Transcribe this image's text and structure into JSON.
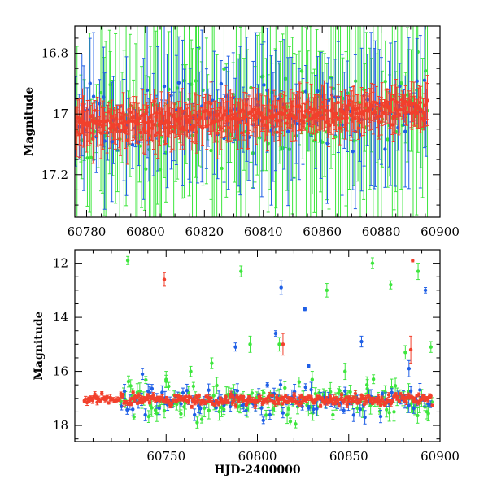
{
  "figure": {
    "xlabel": "HJD-2400000",
    "colors": {
      "green": "#3ee63e",
      "blue": "#1f5fe6",
      "red": "#f2402c",
      "frame": "#000000"
    }
  },
  "chart_data": [
    {
      "type": "scatter",
      "panel": "top",
      "title": "",
      "xlabel": "",
      "ylabel": "Magnitude",
      "xlim": [
        60776,
        60900
      ],
      "ylim": [
        17.34,
        16.71
      ],
      "y_inverted": true,
      "x_ticks": [
        60780,
        60800,
        60820,
        60840,
        60860,
        60880,
        60900
      ],
      "x_tick_labels": [
        "60780",
        "60800",
        "60820",
        "60840",
        "60860",
        "60880",
        "60900"
      ],
      "y_ticks": [
        16.8,
        17.0,
        17.2
      ],
      "y_tick_labels": [
        "16.8",
        "17",
        "17.2"
      ],
      "series": [
        {
          "color": "#3ee63e",
          "x_range": [
            60776,
            60896
          ],
          "base_mag": 17.04,
          "trend": -0.06,
          "scatter": 0.07,
          "typical_error": 0.25
        },
        {
          "color": "#1f5fe6",
          "x_range": [
            60776,
            60896
          ],
          "base_mag": 17.04,
          "trend": -0.06,
          "scatter": 0.05,
          "typical_error": 0.15
        },
        {
          "color": "#f2402c",
          "x_range": [
            60776,
            60896
          ],
          "base_mag": 17.04,
          "trend": -0.06,
          "scatter": 0.02,
          "typical_error": 0.05
        }
      ]
    },
    {
      "type": "scatter",
      "panel": "bottom",
      "title": "",
      "xlabel": "HJD-2400000",
      "ylabel": "Magnitude",
      "xlim": [
        60700,
        60900
      ],
      "ylim": [
        18.6,
        11.5
      ],
      "y_inverted": true,
      "x_ticks": [
        60750,
        60800,
        60850,
        60900
      ],
      "x_tick_labels": [
        "60750",
        "60800",
        "60850",
        "60900"
      ],
      "y_ticks": [
        12,
        14,
        16,
        18
      ],
      "y_tick_labels": [
        "12",
        "14",
        "16",
        "18"
      ],
      "series": [
        {
          "color": "#3ee63e",
          "x_range": [
            60725,
            60896
          ],
          "base_mag": 17.1,
          "outliers": [
            [
              60729,
              11.9,
              0.15
            ],
            [
              60791,
              12.3,
              0.2
            ],
            [
              60838,
              13.0,
              0.25
            ],
            [
              60863,
              12.0,
              0.2
            ],
            [
              60873,
              12.8,
              0.15
            ],
            [
              60888,
              12.3,
              0.3
            ],
            [
              60796,
              15.0,
              0.3
            ],
            [
              60775,
              15.7,
              0.2
            ],
            [
              60812,
              15.0,
              0.25
            ],
            [
              60848,
              16.0,
              0.3
            ],
            [
              60881,
              15.3,
              0.25
            ],
            [
              60895,
              15.1,
              0.2
            ],
            [
              60750,
              16.3,
              0.3
            ],
            [
              60830,
              16.3,
              0.3
            ],
            [
              60860,
              16.5,
              0.3
            ]
          ]
        },
        {
          "color": "#1f5fe6",
          "x_range": [
            60725,
            60896
          ],
          "base_mag": 17.1,
          "outliers": [
            [
              60813,
              12.9,
              0.25
            ],
            [
              60826,
              13.7,
              0.05
            ],
            [
              60892,
              13.0,
              0.1
            ],
            [
              60810,
              14.6,
              0.1
            ],
            [
              60788,
              15.1,
              0.15
            ],
            [
              60857,
              14.9,
              0.2
            ],
            [
              60737,
              16.1,
              0.2
            ],
            [
              60883,
              15.9,
              0.3
            ],
            [
              60828,
              15.8,
              0.05
            ]
          ]
        },
        {
          "color": "#f2402c",
          "x_range": [
            60705,
            60896
          ],
          "base_mag": 17.05,
          "outliers": [
            [
              60749,
              12.6,
              0.25
            ],
            [
              60885,
              11.9,
              0.05
            ],
            [
              60814,
              15.0,
              0.4
            ],
            [
              60884,
              15.2,
              0.5
            ]
          ]
        }
      ]
    }
  ]
}
